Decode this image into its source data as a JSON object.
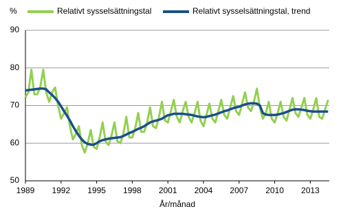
{
  "chart_data": {
    "type": "line",
    "y_label": "%",
    "x_label": "År/månad",
    "xlim": [
      1989,
      2014.6
    ],
    "xticks": [
      1989,
      1992,
      1995,
      1998,
      2001,
      2004,
      2007,
      2010,
      2013
    ],
    "ylim": [
      50,
      90
    ],
    "yticks": [
      50,
      60,
      70,
      80,
      90
    ],
    "grid": true,
    "legend": "top",
    "x": [
      1989,
      1989.25,
      1989.5,
      1989.75,
      1990,
      1990.25,
      1990.5,
      1990.75,
      1991,
      1991.25,
      1991.5,
      1991.75,
      1992,
      1992.25,
      1992.5,
      1992.75,
      1993,
      1993.25,
      1993.5,
      1993.75,
      1994,
      1994.25,
      1994.5,
      1994.75,
      1995,
      1995.25,
      1995.5,
      1995.75,
      1996,
      1996.25,
      1996.5,
      1996.75,
      1997,
      1997.25,
      1997.5,
      1997.75,
      1998,
      1998.25,
      1998.5,
      1998.75,
      1999,
      1999.25,
      1999.5,
      1999.75,
      2000,
      2000.25,
      2000.5,
      2000.75,
      2001,
      2001.25,
      2001.5,
      2001.75,
      2002,
      2002.25,
      2002.5,
      2002.75,
      2003,
      2003.25,
      2003.5,
      2003.75,
      2004,
      2004.25,
      2004.5,
      2004.75,
      2005,
      2005.25,
      2005.5,
      2005.75,
      2006,
      2006.25,
      2006.5,
      2006.75,
      2007,
      2007.25,
      2007.5,
      2007.75,
      2008,
      2008.25,
      2008.5,
      2008.75,
      2009,
      2009.25,
      2009.5,
      2009.75,
      2010,
      2010.25,
      2010.5,
      2010.75,
      2011,
      2011.25,
      2011.5,
      2011.75,
      2012,
      2012.25,
      2012.5,
      2012.75,
      2013,
      2013.25,
      2013.5,
      2013.75,
      2014,
      2014.25,
      2014.5
    ],
    "series": [
      {
        "name": "Relativt sysselsättningstal",
        "color": "#92d050",
        "width": 3,
        "values": [
          72.2,
          73.5,
          79.5,
          73.0,
          73.0,
          75.0,
          79.5,
          73.5,
          71.0,
          73.5,
          74.8,
          70.0,
          66.5,
          68.0,
          69.5,
          64.5,
          61.0,
          62.5,
          64.5,
          59.5,
          57.5,
          60.0,
          63.5,
          59.0,
          58.5,
          61.5,
          65.5,
          60.5,
          59.5,
          62.0,
          65.5,
          60.5,
          60.0,
          62.5,
          67.0,
          61.5,
          61.5,
          64.0,
          68.0,
          63.0,
          63.0,
          65.5,
          69.5,
          64.5,
          64.0,
          67.0,
          71.0,
          66.0,
          65.5,
          68.5,
          71.5,
          67.0,
          65.5,
          68.5,
          71.0,
          67.0,
          65.5,
          68.0,
          71.0,
          66.0,
          64.5,
          67.5,
          70.5,
          66.5,
          65.5,
          68.5,
          71.5,
          67.5,
          66.5,
          69.5,
          72.5,
          68.5,
          67.5,
          70.5,
          73.5,
          69.5,
          68.5,
          71.0,
          74.5,
          69.5,
          66.5,
          68.0,
          71.0,
          66.5,
          65.5,
          68.0,
          71.0,
          67.0,
          66.0,
          69.0,
          72.0,
          68.0,
          67.0,
          69.5,
          72.0,
          67.5,
          66.5,
          69.0,
          72.0,
          67.0,
          66.5,
          69.0,
          71.5
        ]
      },
      {
        "name": "Relativt sysselsättningstal, trend",
        "color": "#1b4f8a",
        "width": 3.5,
        "values": [
          74.0,
          74.1,
          74.2,
          74.3,
          74.4,
          74.5,
          74.5,
          74.3,
          73.5,
          72.8,
          72.0,
          71.0,
          69.8,
          68.5,
          67.3,
          66.0,
          64.5,
          63.2,
          62.0,
          61.0,
          60.2,
          59.8,
          59.6,
          59.6,
          60.0,
          60.5,
          60.8,
          61.0,
          61.2,
          61.3,
          61.4,
          61.5,
          61.6,
          61.9,
          62.3,
          62.7,
          63.0,
          63.4,
          63.8,
          64.1,
          64.5,
          65.0,
          65.5,
          65.8,
          66.0,
          66.2,
          66.5,
          67.0,
          67.4,
          67.6,
          67.8,
          67.8,
          67.8,
          67.8,
          67.7,
          67.6,
          67.5,
          67.3,
          67.1,
          67.0,
          66.9,
          67.0,
          67.2,
          67.4,
          67.6,
          67.9,
          68.2,
          68.5,
          68.7,
          69.0,
          69.3,
          69.5,
          69.7,
          70.0,
          70.3,
          70.5,
          70.6,
          70.6,
          70.5,
          70.0,
          68.0,
          67.6,
          67.5,
          67.5,
          67.5,
          67.6,
          67.8,
          68.0,
          68.3,
          68.6,
          68.9,
          69.0,
          69.0,
          68.9,
          68.8,
          68.6,
          68.5,
          68.4,
          68.4,
          68.4,
          68.4,
          68.4,
          68.4
        ]
      }
    ]
  }
}
